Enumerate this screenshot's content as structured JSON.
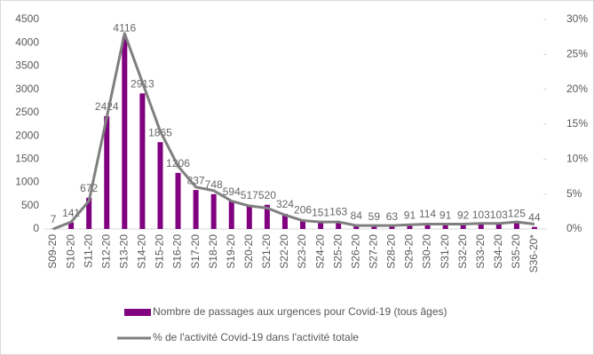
{
  "chart_data": {
    "type": "bar-line",
    "categories": [
      "S09-20",
      "S10-20",
      "S11-20",
      "S12-20",
      "S13-20",
      "S14-20",
      "S15-20",
      "S16-20",
      "S17-20",
      "S18-20",
      "S19-20",
      "S20-20",
      "S21-20",
      "S22-20",
      "S23-20",
      "S24-20",
      "S25-20",
      "S26-20",
      "S27-20",
      "S28-20",
      "S29-20",
      "S30-20",
      "S31-20",
      "S32-20",
      "S33-20",
      "S34-20",
      "S35-20",
      "S36-20*"
    ],
    "series": [
      {
        "name": "Nombre de passages aux urgences pour Covid-19 (tous âges)",
        "type": "bar",
        "color": "#800080",
        "values": [
          7,
          141,
          672,
          2424,
          4116,
          2913,
          1865,
          1206,
          837,
          748,
          594,
          517,
          520,
          324,
          206,
          151,
          163,
          84,
          59,
          63,
          91,
          114,
          91,
          92,
          103,
          103,
          125,
          44
        ]
      },
      {
        "name": "% de l'activité Covid-19 dans l'activité totale",
        "type": "line",
        "axis": "y2",
        "color": "#7f7f7f",
        "values": [
          0,
          1,
          4,
          16,
          28,
          21,
          14,
          9,
          6,
          5.5,
          4,
          3.3,
          3,
          2,
          1.2,
          1,
          1,
          0.5,
          0.5,
          0.5,
          0.6,
          0.7,
          0.7,
          0.7,
          0.8,
          0.8,
          1,
          0.7
        ]
      }
    ],
    "ylim": [
      0,
      4500
    ],
    "yticks": [
      0,
      500,
      1000,
      1500,
      2000,
      2500,
      3000,
      3500,
      4000,
      4500
    ],
    "y2lim": [
      0,
      30
    ],
    "y2ticks": [
      {
        "value": 0,
        "label": "0%"
      },
      {
        "value": 5,
        "label": "5%"
      },
      {
        "value": 10,
        "label": "10%"
      },
      {
        "value": 15,
        "label": "15%"
      },
      {
        "value": 20,
        "label": "20%"
      },
      {
        "value": 25,
        "label": "25%"
      },
      {
        "value": 30,
        "label": "30%"
      }
    ],
    "legend": "bottom",
    "grid": false
  }
}
